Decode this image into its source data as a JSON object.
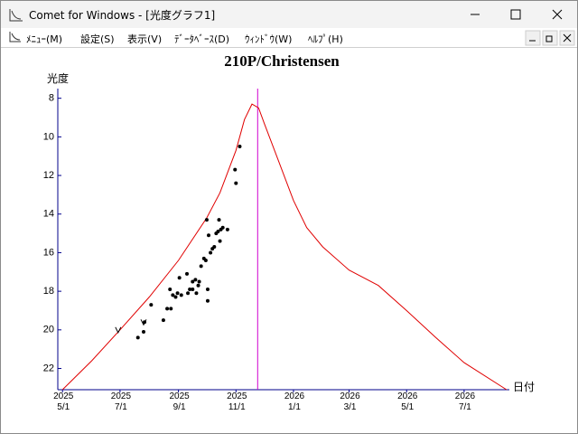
{
  "window": {
    "title": "Comet for Windows - [光度グラフ1]"
  },
  "menu": [
    "ﾒﾆｭｰ(M)",
    "設定(S)",
    "表示(V)",
    "ﾃﾞｰﾀﾍﾞｰｽ(D)",
    "ｳｨﾝﾄﾞｳ(W)",
    "ﾍﾙﾌﾟ(H)"
  ],
  "chart_data": {
    "type": "scatter",
    "title": "210P/Christensen",
    "y_label": "光度",
    "x_label": "日付",
    "xlim": [
      "2025-04-26",
      "2026-08-18"
    ],
    "xticks": [
      {
        "value": "2025-05-01",
        "label": "2025\n5/1"
      },
      {
        "value": "2025-07-01",
        "label": "2025\n7/1"
      },
      {
        "value": "2025-09-01",
        "label": "2025\n9/1"
      },
      {
        "value": "2025-11-01",
        "label": "2025\n11/1"
      },
      {
        "value": "2026-01-01",
        "label": "2026\n1/1"
      },
      {
        "value": "2026-03-01",
        "label": "2026\n3/1"
      },
      {
        "value": "2026-05-01",
        "label": "2026\n5/1"
      },
      {
        "value": "2026-07-01",
        "label": "2026\n7/1"
      }
    ],
    "ylim": [
      7.5,
      23.1
    ],
    "y_inverted": true,
    "yticks": [
      8,
      10,
      12,
      14,
      16,
      18,
      20,
      22
    ],
    "axis_color": "#00008b",
    "perihelion": "2025-11-24",
    "perihelion_color": "#d000d0",
    "series": [
      {
        "style": "line",
        "color": "#e00000",
        "x": [
          "2025-05-01",
          "2025-06-01",
          "2025-07-01",
          "2025-08-01",
          "2025-09-01",
          "2025-10-01",
          "2025-10-15",
          "2025-11-01",
          "2025-11-10",
          "2025-11-18",
          "2025-11-25",
          "2025-12-01",
          "2025-12-15",
          "2026-01-01",
          "2026-01-15",
          "2026-02-01",
          "2026-03-01",
          "2026-04-01",
          "2026-05-01",
          "2026-06-01",
          "2026-07-01",
          "2026-08-15"
        ],
        "values": [
          23.1,
          21.6,
          20.0,
          18.3,
          16.4,
          14.2,
          12.9,
          10.7,
          9.1,
          8.3,
          8.5,
          9.3,
          11.1,
          13.3,
          14.7,
          15.7,
          16.9,
          17.7,
          19.0,
          20.4,
          21.7,
          23.1
        ]
      },
      {
        "style": "dot",
        "color": "#000000",
        "x": [
          "2025-07-20",
          "2025-07-26",
          "2025-07-27",
          "2025-08-03",
          "2025-08-16",
          "2025-08-20",
          "2025-08-24",
          "2025-08-23",
          "2025-08-26",
          "2025-08-29",
          "2025-08-31",
          "2025-09-02",
          "2025-09-04",
          "2025-09-10",
          "2025-09-11",
          "2025-09-13",
          "2025-09-16",
          "2025-09-16",
          "2025-09-19",
          "2025-09-20",
          "2025-09-22",
          "2025-09-23",
          "2025-09-25",
          "2025-09-28",
          "2025-09-30",
          "2025-10-01",
          "2025-10-02",
          "2025-10-02",
          "2025-10-03",
          "2025-10-05",
          "2025-10-07",
          "2025-10-09",
          "2025-10-11",
          "2025-10-13",
          "2025-10-14",
          "2025-10-15",
          "2025-10-16",
          "2025-10-18",
          "2025-10-23",
          "2025-10-31",
          "2025-11-01",
          "2025-11-05"
        ],
        "values": [
          20.4,
          20.1,
          19.6,
          18.7,
          19.5,
          18.9,
          18.9,
          17.9,
          18.2,
          18.3,
          18.1,
          17.3,
          18.2,
          17.1,
          18.1,
          17.9,
          17.5,
          17.9,
          17.4,
          18.1,
          17.7,
          17.5,
          16.7,
          16.3,
          16.4,
          14.3,
          17.9,
          18.5,
          15.1,
          16.0,
          15.8,
          15.7,
          15.0,
          14.9,
          14.3,
          15.4,
          14.8,
          14.7,
          14.8,
          11.7,
          12.4,
          10.5
        ]
      },
      {
        "style": "v",
        "color": "#000000",
        "x": [
          "2025-06-29",
          "2025-07-26"
        ],
        "values": [
          20.0,
          19.6
        ]
      }
    ]
  }
}
